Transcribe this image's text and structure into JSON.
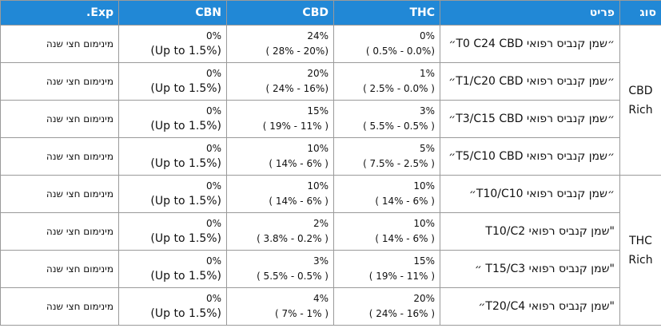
{
  "table": {
    "header": [
      "סוג",
      "פריט",
      "THC",
      "CBD",
      "CBN",
      "Exp."
    ],
    "rows": [
      {
        "type": "CBD Rich",
        "item": "״שמן קנביס רפואי T0 C24 CBD״",
        "thc": [
          "0%",
          "( 0.5% - 0.0%)"
        ],
        "cbd": [
          "24%",
          "( 28% - 20%)"
        ],
        "cbn": [
          "0%",
          "(Up to 1.5%)"
        ],
        "exp": "מינימום חצי שנה"
      },
      {
        "item": "״שמן קנביס רפואי T1/C20 CBD״",
        "thc": [
          "1%",
          "( 2.5% - 0.0% )"
        ],
        "cbd": [
          "20%",
          "( 24% - 16%)"
        ],
        "cbn": [
          "0%",
          "(Up to 1.5%)"
        ],
        "exp": "מינימום חצי שנה"
      },
      {
        "item": "״שמן קנביס רפואי T3/C15 CBD״",
        "thc": [
          "3%",
          "( 5.5% -  0.5% )"
        ],
        "cbd": [
          "15%",
          "( 19% - 11% )"
        ],
        "cbn": [
          "0%",
          "(Up to 1.5%)"
        ],
        "exp": "מינימום חצי שנה"
      },
      {
        "item": "״שמן קנביס רפואי T5/C10 CBD״",
        "thc": [
          "5%",
          "( 7.5% - 2.5% )"
        ],
        "cbd": [
          "10%",
          "( 14% - 6% )"
        ],
        "cbn": [
          "0%",
          "(Up to 1.5%)"
        ],
        "exp": "מינימום חצי שנה"
      },
      {
        "type": "THC Rich",
        "item": "״שמן קנביס רפואי T10/C10״",
        "thc": [
          "10%",
          "( 14% - 6% )"
        ],
        "cbd": [
          "10%",
          "( 14% - 6% )"
        ],
        "cbn": [
          "0%",
          "(Up to 1.5%)"
        ],
        "exp": "מינימום חצי שנה"
      },
      {
        "item": "\"שמן קנביס רפואי T10/C2",
        "thc": [
          "10%",
          "( 14% - 6% )"
        ],
        "cbd": [
          "2%",
          "( 3.8% - 0.2% )"
        ],
        "cbn": [
          "0%",
          "(Up to 1.5%)"
        ],
        "exp": "מינימום חצי שנה"
      },
      {
        "item": "\"שמן קנביס רפואי T15/C3 ״",
        "thc": [
          "15%",
          "( 19% - 11% )"
        ],
        "cbd": [
          "3%",
          "( 5.5% - 0.5% )"
        ],
        "cbn": [
          "0%",
          "(Up to 1.5%)"
        ],
        "exp": "מינימום חצי שנה"
      },
      {
        "item": "\"שמן קנביס רפואי T20/C4״",
        "thc": [
          "20%",
          "( 24% - 16% )"
        ],
        "cbd": [
          "4%",
          "( 7% - 1% )"
        ],
        "cbn": [
          "0%",
          "(Up to 1.5%)"
        ],
        "exp": "מינימום חצי שנה"
      }
    ]
  }
}
